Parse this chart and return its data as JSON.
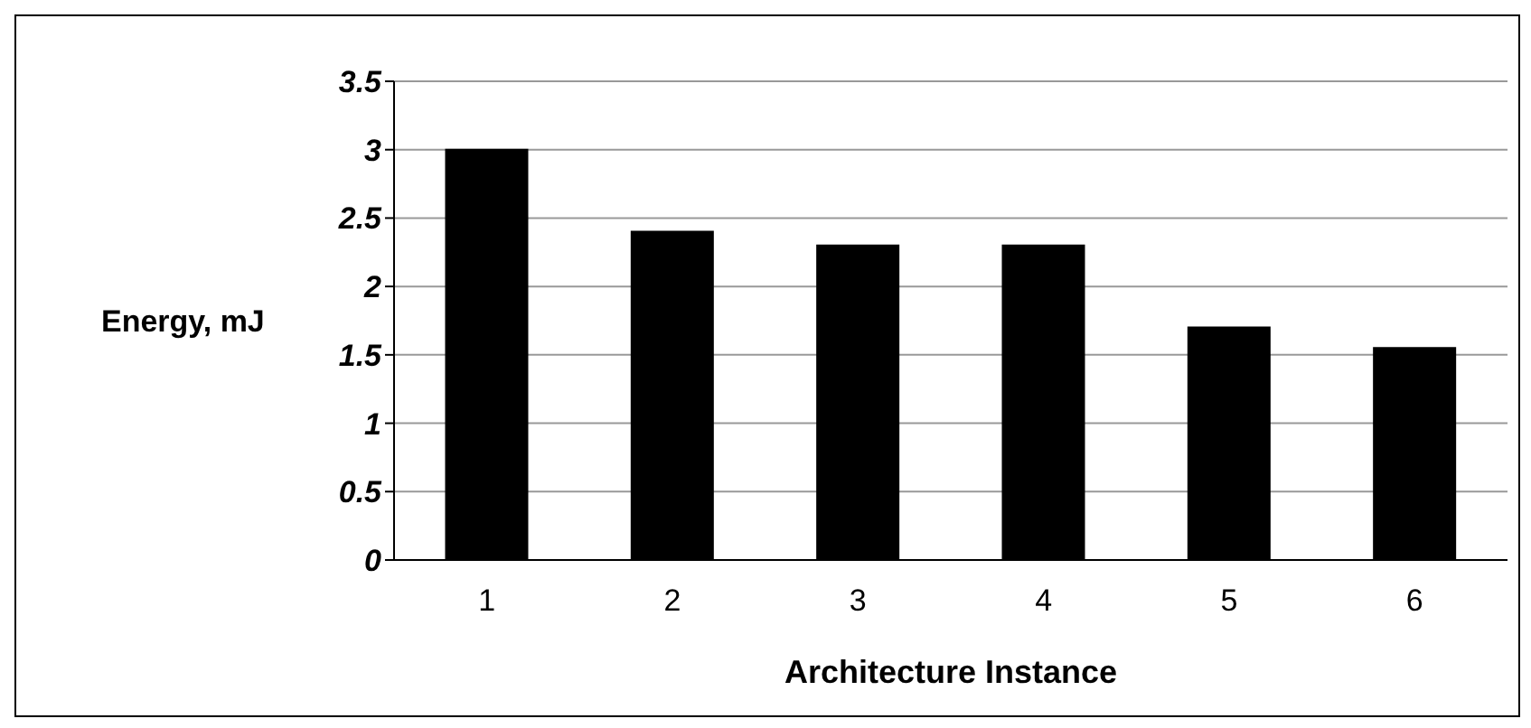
{
  "chart_data": {
    "type": "bar",
    "xlabel": "Architecture Instance",
    "ylabel": "Energy, mJ",
    "categories": [
      "1",
      "2",
      "3",
      "4",
      "5",
      "6"
    ],
    "values": [
      3.0,
      2.4,
      2.3,
      2.3,
      1.7,
      1.55
    ],
    "color": "#000000",
    "ylim": [
      0,
      3.5
    ],
    "yticks": [
      0,
      0.5,
      1,
      1.5,
      2,
      2.5,
      3,
      3.5
    ],
    "grid": "y"
  }
}
